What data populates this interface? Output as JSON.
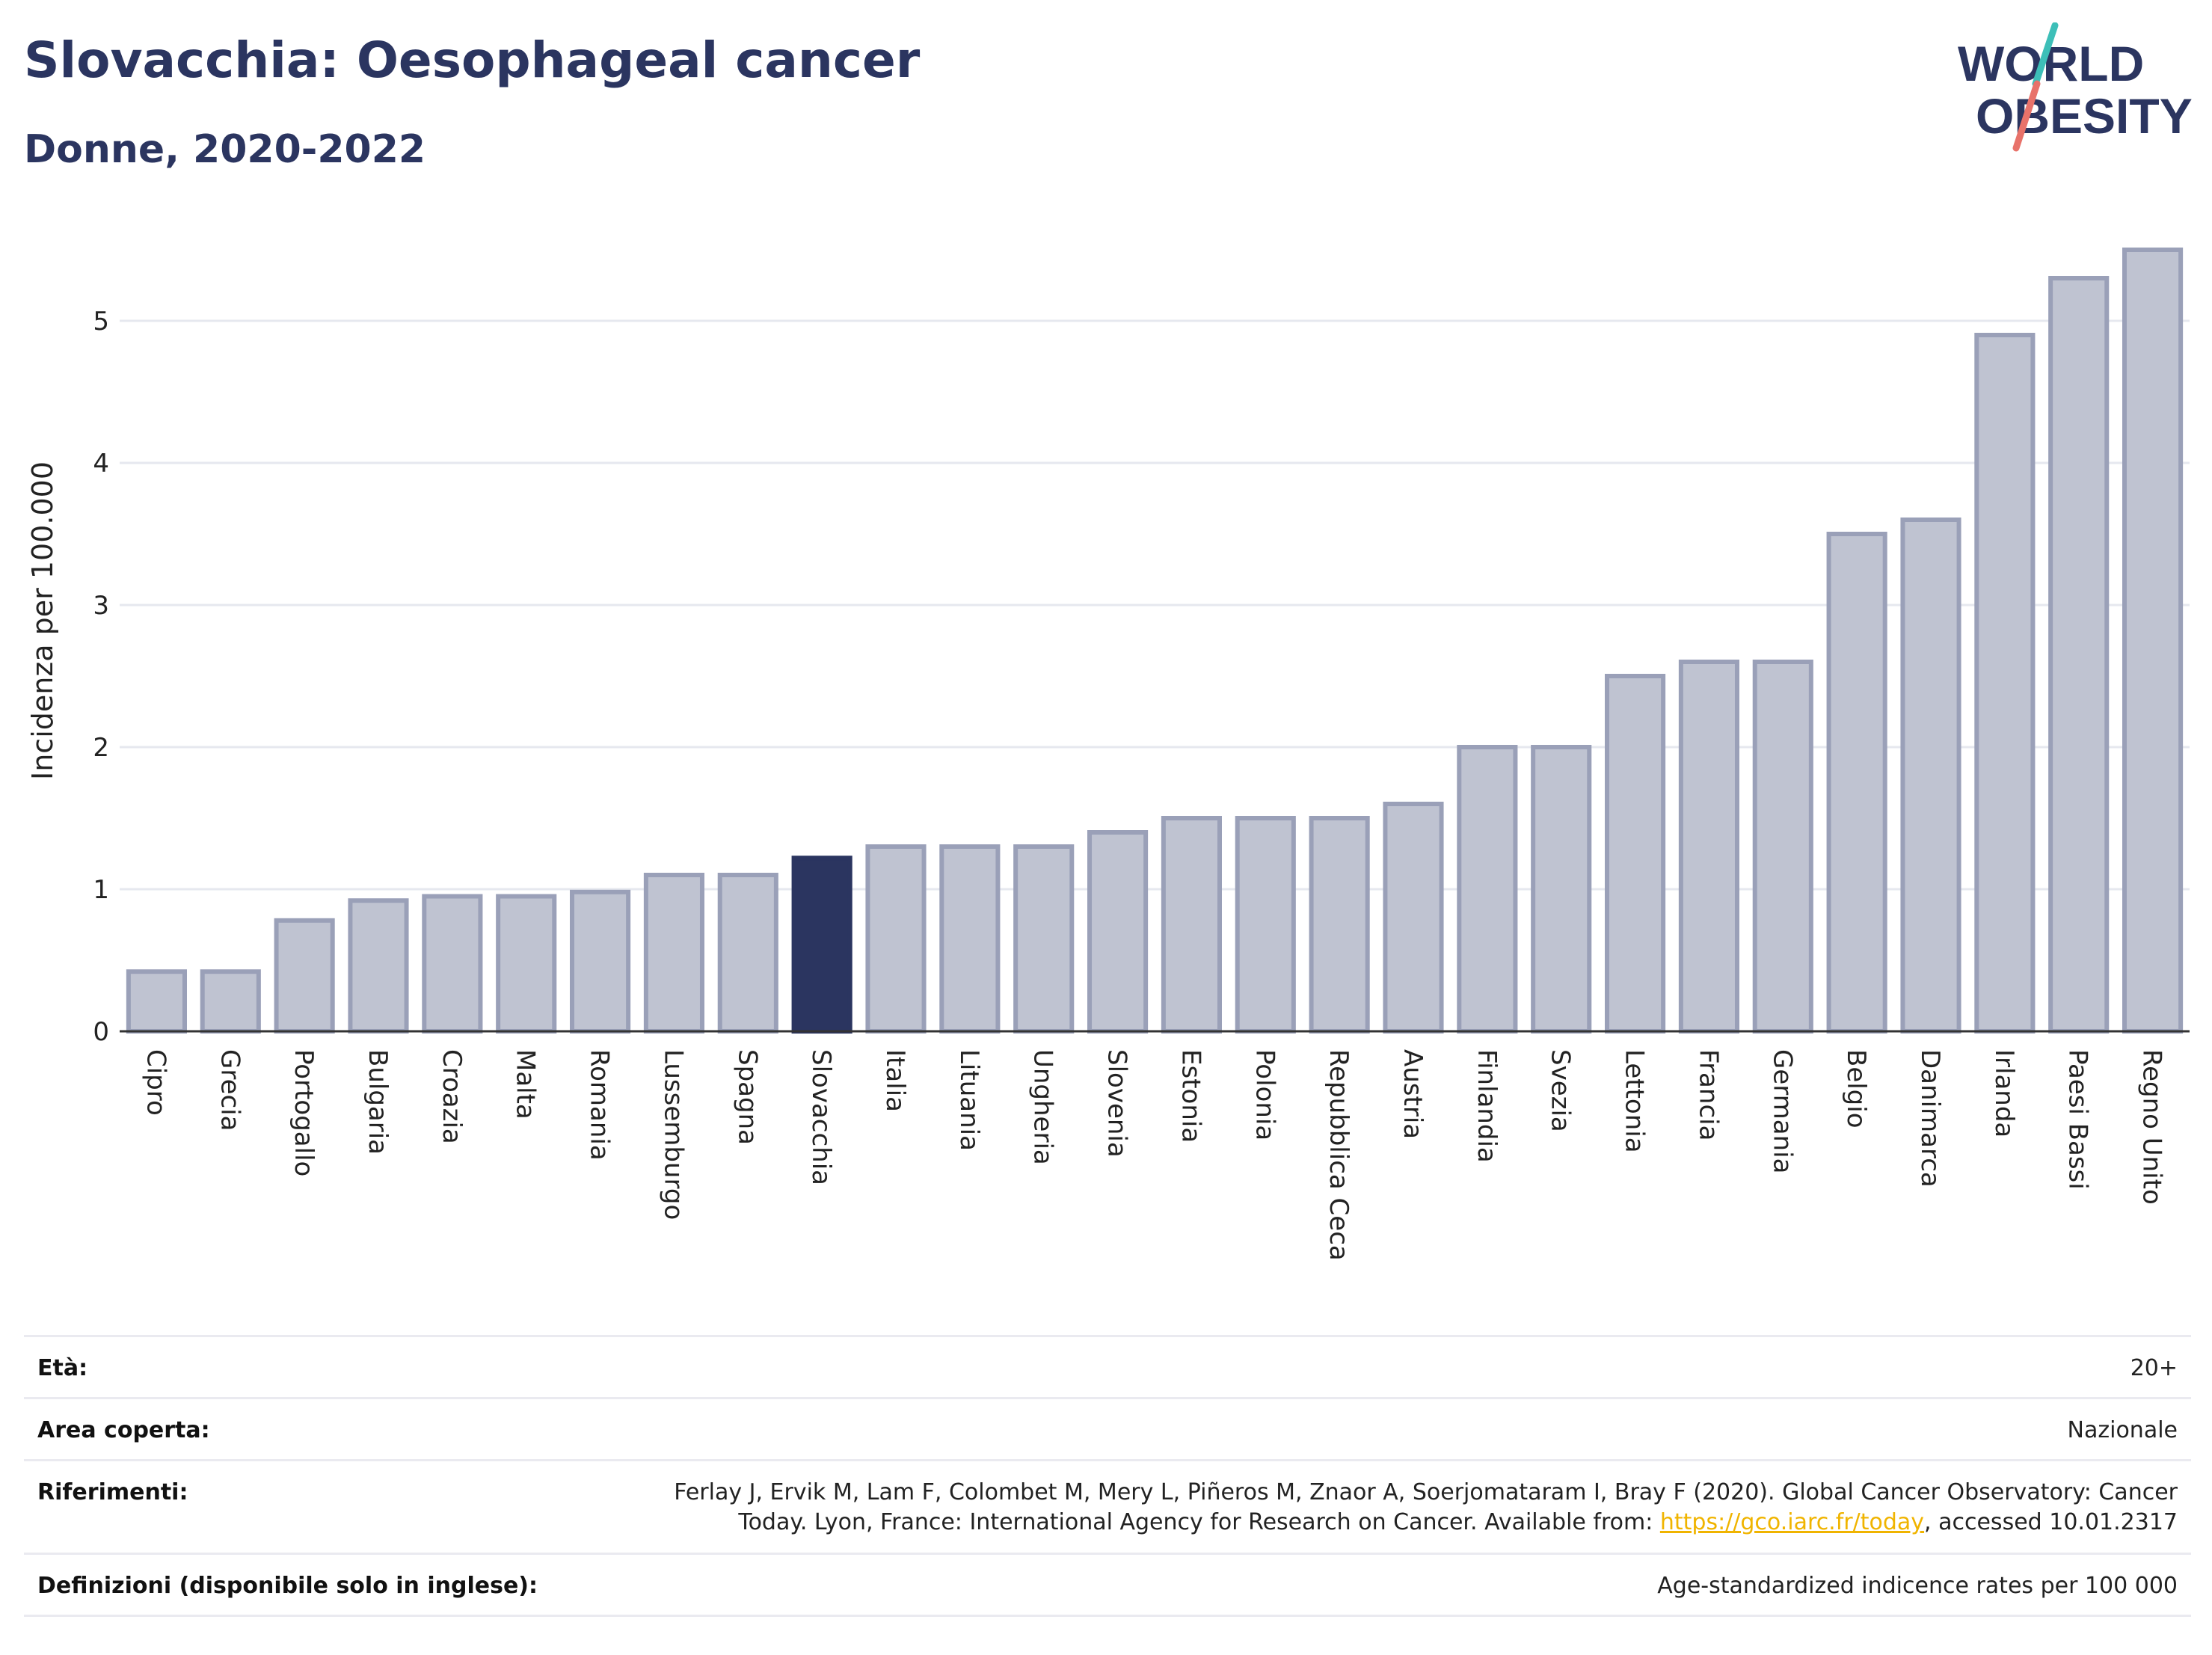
{
  "header": {
    "title": "Slovacchia: Oesophageal cancer",
    "subtitle": "Donne, 2020-2022"
  },
  "logo": {
    "line1": "WORLD",
    "line2": "OBESITY",
    "icon": "world-obesity-logo"
  },
  "chart_data": {
    "type": "bar",
    "ylabel": "Incidenza per 100.000",
    "ylim": [
      0,
      5.6
    ],
    "yticks": [
      0,
      1,
      2,
      3,
      4,
      5
    ],
    "grid": true,
    "highlight": "Slovacchia",
    "colors": {
      "bar": "#bfc3d1",
      "bar_edge": "#9aa0b8",
      "highlight": "#2b3560"
    },
    "categories": [
      "Cipro",
      "Grecia",
      "Portogallo",
      "Bulgaria",
      "Croazia",
      "Malta",
      "Romania",
      "Lussemburgo",
      "Spagna",
      "Slovacchia",
      "Italia",
      "Lituania",
      "Ungheria",
      "Slovenia",
      "Estonia",
      "Polonia",
      "Repubblica Ceca",
      "Austria",
      "Finlandia",
      "Svezia",
      "Lettonia",
      "Francia",
      "Germania",
      "Belgio",
      "Danimarca",
      "Irlanda",
      "Paesi Bassi",
      "Regno Unito"
    ],
    "values": [
      0.42,
      0.42,
      0.78,
      0.92,
      0.95,
      0.95,
      0.98,
      1.1,
      1.1,
      1.22,
      1.3,
      1.3,
      1.3,
      1.4,
      1.5,
      1.5,
      1.5,
      1.6,
      2.0,
      2.0,
      2.5,
      2.6,
      2.6,
      3.5,
      3.6,
      4.9,
      5.3,
      5.5
    ]
  },
  "info": {
    "age_label": "Età:",
    "age_value": "20+",
    "area_label": "Area coperta:",
    "area_value": "Nazionale",
    "ref_label": "Riferimenti:",
    "ref_line1": "Ferlay J, Ervik M, Lam F, Colombet M, Mery L, Piñeros M, Znaor A, Soerjomataram I, Bray F (2020). Global Cancer Observatory: Cancer",
    "ref_line2_pre": "Today. Lyon, France: International Agency for Research on Cancer. Available from: ",
    "ref_link": "https://gco.iarc.fr/today",
    "ref_line2_post": ", accessed 10.01.2317",
    "def_label": "Definizioni (disponibile solo in inglese):",
    "def_value": "Age-standardized indicence rates per 100 000"
  }
}
